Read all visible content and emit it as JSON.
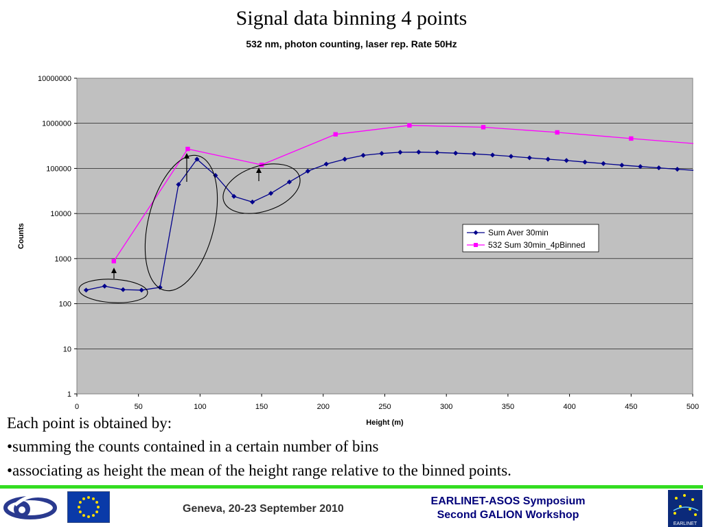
{
  "header": {
    "title": "Signal data binning 4 points",
    "subtitle": "532 nm, photon counting, laser rep. Rate 50Hz"
  },
  "chart_data": {
    "type": "line",
    "xlabel": "Height (m)",
    "ylabel": "Counts",
    "xlim": [
      0,
      500
    ],
    "ylim": [
      1,
      10000000
    ],
    "y_scale": "log",
    "x_ticks": [
      "0",
      "50",
      "100",
      "150",
      "200",
      "250",
      "300",
      "350",
      "400",
      "450",
      "500"
    ],
    "y_ticks": [
      "1",
      "10",
      "100",
      "1000",
      "10000",
      "100000",
      "1000000",
      "10000000"
    ],
    "grid": "horizontal",
    "legend": "right",
    "series": [
      {
        "name": "Sum Aver 30min",
        "color": "#00008b",
        "marker": "diamond",
        "x": [
          7.5,
          22.5,
          37.5,
          52.5,
          67.5,
          82.5,
          97.5,
          112.5,
          127.5,
          142.5,
          157.5,
          172.5,
          187.5,
          202.5,
          217.5,
          232.5,
          247.5,
          262.5,
          277.5,
          292.5,
          307.5,
          322.5,
          337.5,
          352.5,
          367.5,
          382.5,
          397.5,
          412.5,
          427.5,
          442.5,
          457.5,
          472.5,
          487.5,
          502.5
        ],
        "y": [
          200,
          245,
          205,
          200,
          230,
          44000,
          160000,
          70000,
          24000,
          18000,
          28000,
          50000,
          87000,
          125000,
          160000,
          195000,
          215000,
          228000,
          230000,
          225000,
          218000,
          210000,
          198000,
          185000,
          172000,
          160000,
          150000,
          138000,
          128000,
          118000,
          110000,
          103000,
          96000,
          90000
        ]
      },
      {
        "name": "532 Sum 30min_4pBinned",
        "color": "#ff00ff",
        "marker": "square",
        "x": [
          30,
          90,
          150,
          210,
          270,
          330,
          390,
          450,
          510
        ],
        "y": [
          880,
          270000,
          120000,
          570000,
          900000,
          820000,
          630000,
          460000,
          340000
        ]
      }
    ],
    "annotations": [
      "ellipse around points 8-53 m",
      "ellipse around points 68-112 m",
      "ellipse around points 127-172 m",
      "arrows pointing to binned points at 30, 90, 150 m"
    ]
  },
  "body": {
    "line1": "Each point is obtained by:",
    "line2": "•summing the counts contained in a certain number of bins",
    "line3": "•associating as height the mean of the height range relative to the binned points."
  },
  "footer": {
    "date": "Geneva, 20-23 September 2010",
    "symposium_line1": "EARLINET-ASOS Symposium",
    "symposium_line2": "Second GALION Workshop",
    "logo_text": "EARLINET"
  }
}
